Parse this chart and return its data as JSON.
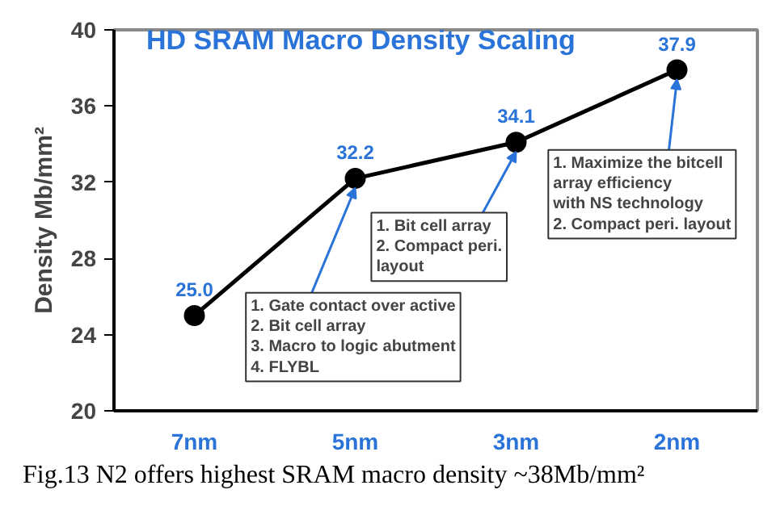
{
  "chart_data": {
    "type": "line",
    "title": "HD SRAM Macro Density Scaling",
    "ylabel": "Density Mb/mm²",
    "categories": [
      "7nm",
      "5nm",
      "3nm",
      "2nm"
    ],
    "series": [
      {
        "color": "#000000",
        "values": [
          25.0,
          32.2,
          34.1,
          37.9
        ],
        "value_labels": [
          "25.0",
          "32.2",
          "34.1",
          "37.9"
        ]
      }
    ],
    "marker": "circle",
    "line_style": "solid",
    "ylim": [
      20,
      40
    ],
    "yticks": [
      20,
      24,
      28,
      32,
      36,
      40
    ],
    "grid": false,
    "annotations": [
      {
        "text": "1. Gate contact over active\n2. Bit cell array\n3. Macro to logic abutment\n4. FLYBL",
        "x": "5nm",
        "y": 32.2
      },
      {
        "text": "1. Bit cell array\n2. Compact peri.\n    layout",
        "x": "3nm",
        "y": 34.1
      },
      {
        "text": "1. Maximize the bitcell\n    array efficiency\n    with NS technology\n2. Compact peri. layout",
        "x": "2nm",
        "y": 37.9
      },
      "Fig.13  N2 offers highest SRAM macro density ~38Mb/mm²"
    ]
  }
}
